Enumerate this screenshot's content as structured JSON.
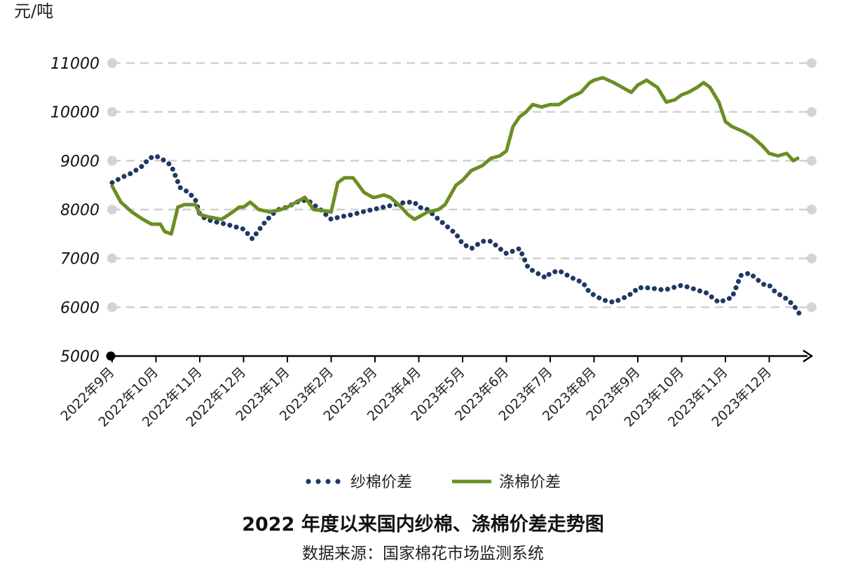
{
  "chart_data": {
    "type": "line",
    "y_unit": "元/吨",
    "title": "2022 年度以来国内纱棉、涤棉价差走势图",
    "source": "数据来源：国家棉花市场监测系统",
    "ylim": [
      5000,
      11000
    ],
    "yticks": [
      "11000",
      "10000",
      "9000",
      "8000",
      "7000",
      "6000",
      "5000"
    ],
    "grid": true,
    "legend_position": "bottom",
    "x_categories": [
      "2022年9月",
      "2022年10月",
      "2022年11月",
      "2022年12月",
      "2023年1月",
      "2023年2月",
      "2023年3月",
      "2023年4月",
      "2023年5月",
      "2023年6月",
      "2023年7月",
      "2023年8月",
      "2023年9月",
      "2023年10月",
      "2023年11月",
      "2023年12月"
    ],
    "colors": {
      "yarn": "#1f3864",
      "poly": "#6b8e23"
    },
    "series": [
      {
        "name": "纱棉价差",
        "style": "dotted",
        "color": "#1f3864",
        "x": [
          0,
          0.2,
          0.45,
          0.7,
          0.85,
          1.0,
          1.2,
          1.35,
          1.55,
          1.75,
          1.9,
          2.0,
          2.15,
          2.35,
          2.6,
          2.8,
          3.0,
          3.2,
          3.45,
          3.65,
          3.8,
          4.0,
          4.2,
          4.45,
          4.6,
          4.75,
          5.0,
          5.2,
          5.5,
          5.7,
          5.95,
          6.2,
          6.45,
          6.7,
          6.9,
          7.0,
          7.2,
          7.45,
          7.65,
          7.85,
          8.0,
          8.2,
          8.45,
          8.65,
          8.85,
          9.0,
          9.15,
          9.3,
          9.5,
          9.7,
          9.9,
          10.0,
          10.2,
          10.5,
          10.75,
          10.9,
          11.0,
          11.2,
          11.45,
          11.7,
          11.9,
          12.0,
          12.2,
          12.4,
          12.6,
          12.8,
          13.0,
          13.2,
          13.35,
          13.55,
          13.7,
          13.85,
          14.0,
          14.15,
          14.35,
          14.55,
          14.75,
          14.9,
          15.0,
          15.15,
          15.35,
          15.55,
          15.7
        ],
        "y": [
          8550,
          8650,
          8750,
          8900,
          9050,
          9100,
          9000,
          8900,
          8450,
          8350,
          8200,
          7900,
          7800,
          7750,
          7700,
          7650,
          7600,
          7400,
          7700,
          7900,
          8000,
          8050,
          8150,
          8200,
          8100,
          8000,
          7800,
          7850,
          7900,
          7950,
          8000,
          8050,
          8100,
          8150,
          8150,
          8050,
          8000,
          7800,
          7650,
          7500,
          7300,
          7200,
          7350,
          7350,
          7200,
          7100,
          7150,
          7200,
          6800,
          6700,
          6600,
          6700,
          6750,
          6600,
          6500,
          6300,
          6250,
          6150,
          6100,
          6200,
          6300,
          6400,
          6400,
          6380,
          6350,
          6400,
          6450,
          6400,
          6350,
          6300,
          6200,
          6100,
          6150,
          6200,
          6650,
          6700,
          6550,
          6450,
          6450,
          6300,
          6200,
          6050,
          5850
        ]
      },
      {
        "name": "涤棉价差",
        "style": "solid",
        "color": "#6b8e23",
        "x": [
          0,
          0.2,
          0.45,
          0.7,
          0.9,
          1.1,
          1.2,
          1.35,
          1.5,
          1.65,
          1.9,
          2.0,
          2.2,
          2.5,
          2.75,
          2.9,
          3.0,
          3.15,
          3.35,
          3.6,
          3.85,
          4.0,
          4.2,
          4.4,
          4.6,
          4.8,
          5.0,
          5.15,
          5.3,
          5.5,
          5.75,
          5.95,
          6.0,
          6.2,
          6.35,
          6.6,
          6.75,
          6.9,
          7.0,
          7.2,
          7.45,
          7.6,
          7.85,
          8.0,
          8.2,
          8.45,
          8.65,
          8.85,
          9.0,
          9.15,
          9.3,
          9.45,
          9.6,
          9.8,
          10.0,
          10.2,
          10.45,
          10.7,
          10.9,
          11.0,
          11.2,
          11.45,
          11.65,
          11.85,
          12.0,
          12.2,
          12.45,
          12.65,
          12.85,
          13.0,
          13.15,
          13.35,
          13.5,
          13.65,
          13.85,
          14.0,
          14.15,
          14.4,
          14.6,
          14.85,
          15.0,
          15.2,
          15.4,
          15.55,
          15.65
        ],
        "y": [
          8480,
          8150,
          7950,
          7800,
          7700,
          7700,
          7550,
          7500,
          8050,
          8100,
          8100,
          7900,
          7850,
          7800,
          7950,
          8050,
          8050,
          8150,
          8000,
          7950,
          8000,
          8050,
          8150,
          8250,
          8000,
          7980,
          7950,
          8550,
          8650,
          8650,
          8350,
          8250,
          8250,
          8300,
          8250,
          8050,
          7900,
          7800,
          7850,
          7950,
          8000,
          8100,
          8500,
          8600,
          8800,
          8900,
          9050,
          9100,
          9200,
          9700,
          9900,
          10000,
          10150,
          10100,
          10150,
          10150,
          10300,
          10400,
          10600,
          10650,
          10700,
          10600,
          10500,
          10400,
          10550,
          10650,
          10500,
          10200,
          10250,
          10350,
          10400,
          10500,
          10600,
          10500,
          10200,
          9800,
          9700,
          9600,
          9500,
          9300,
          9150,
          9100,
          9150,
          9000,
          9050
        ]
      }
    ]
  }
}
